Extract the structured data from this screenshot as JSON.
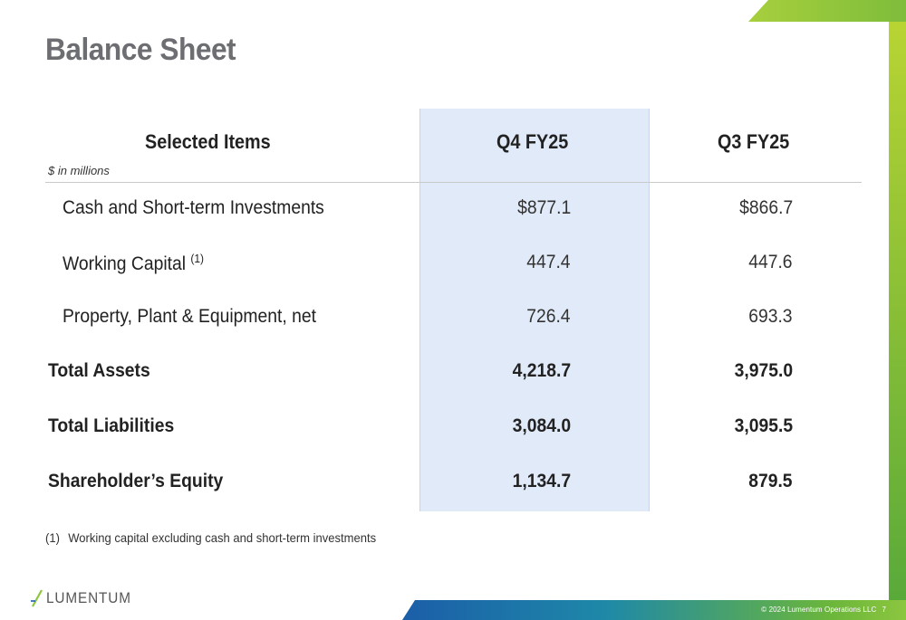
{
  "title": "Balance Sheet",
  "table": {
    "header": {
      "items_label": "Selected Items",
      "unit_note": "$ in millions",
      "q4_label": "Q4 FY25",
      "q3_label": "Q3 FY25"
    },
    "rows": [
      {
        "label": "Cash and Short-term Investments",
        "sup": "",
        "q4": "$877.1",
        "q3": "$866.7",
        "bold": false
      },
      {
        "label": "Working Capital ",
        "sup": "(1)",
        "q4": "447.4",
        "q3": "447.6",
        "bold": false
      },
      {
        "label": "Property, Plant & Equipment, net",
        "sup": "",
        "q4": "726.4",
        "q3": "693.3",
        "bold": false
      },
      {
        "label": "Total Assets",
        "sup": "",
        "q4": "4,218.7",
        "q3": "3,975.0",
        "bold": true
      },
      {
        "label": "Total Liabilities",
        "sup": "",
        "q4": "3,084.0",
        "q3": "3,095.5",
        "bold": true
      },
      {
        "label": "Shareholder’s Equity",
        "sup": "",
        "q4": "1,134.7",
        "q3": "879.5",
        "bold": true
      }
    ]
  },
  "footnote": {
    "number": "(1)",
    "text": "Working capital excluding cash and short-term investments"
  },
  "footer": {
    "logo_text": "LUMENTUM",
    "copyright": "© 2024 Lumentum Operations LLC",
    "page_number": "7"
  },
  "colors": {
    "title_gray": "#6d6e71",
    "highlight_blue": "#e1eaf8",
    "accent_green": "#8cc63f",
    "accent_blue": "#1b5ea8"
  }
}
